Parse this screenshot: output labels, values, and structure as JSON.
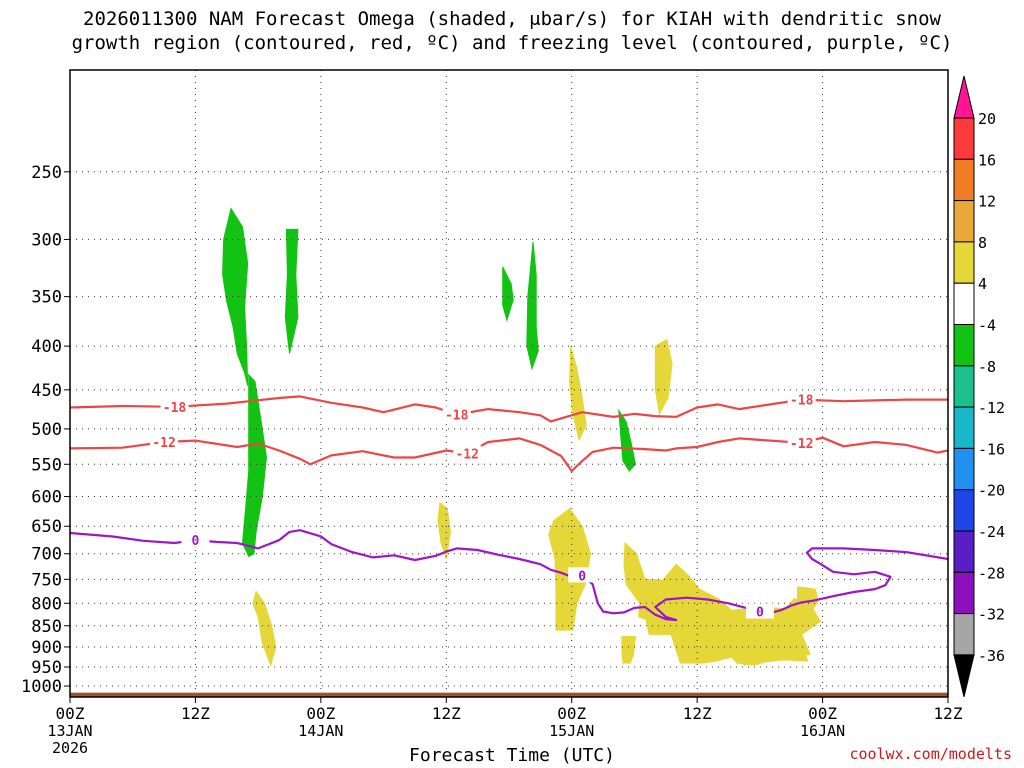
{
  "chart_data": {
    "type": "heatmap",
    "title_line1": "2026011300 NAM Forecast Omega (shaded, μbar/s) for KIAH with dendritic snow",
    "title_line2": "growth region (contoured, red, ºC) and freezing level (contoured, purple, ºC)",
    "xlabel": "Forecast Time (UTC)",
    "credit": "coolwx.com/modelts",
    "x_ticks": [
      {
        "hour": 0,
        "label": "00Z",
        "sub": "13JAN",
        "sub2": "2026"
      },
      {
        "hour": 12,
        "label": "12Z",
        "sub": "",
        "sub2": ""
      },
      {
        "hour": 24,
        "label": "00Z",
        "sub": "14JAN",
        "sub2": ""
      },
      {
        "hour": 36,
        "label": "12Z",
        "sub": "",
        "sub2": ""
      },
      {
        "hour": 48,
        "label": "00Z",
        "sub": "15JAN",
        "sub2": ""
      },
      {
        "hour": 60,
        "label": "12Z",
        "sub": "",
        "sub2": ""
      },
      {
        "hour": 72,
        "label": "00Z",
        "sub": "16JAN",
        "sub2": ""
      },
      {
        "hour": 84,
        "label": "12Z",
        "sub": "",
        "sub2": ""
      }
    ],
    "xlim": [
      0,
      84
    ],
    "y_ticks": [
      250,
      300,
      350,
      400,
      450,
      500,
      550,
      600,
      650,
      700,
      750,
      800,
      850,
      900,
      950,
      1000
    ],
    "ylim_hpa": [
      1030,
      190
    ],
    "colorbar": {
      "labels": [
        "20",
        "16",
        "12",
        "8",
        "4",
        "-4",
        "-8",
        "-12",
        "-16",
        "-20",
        "-24",
        "-28",
        "-32",
        "-36"
      ],
      "colors": [
        "#ff1493",
        "#ff3a3a",
        "#f07c24",
        "#e9a93a",
        "#e6d738",
        "#ffffff",
        "#13c313",
        "#1cc08c",
        "#18b7c9",
        "#2191f1",
        "#1f45e8",
        "#5a1ec6",
        "#8c10bd",
        "#a6a6a6",
        "#000000"
      ]
    },
    "contours": [
      {
        "label": "-18",
        "color": "#ee4646",
        "points": [
          [
            0,
            472
          ],
          [
            5,
            470
          ],
          [
            10,
            471
          ],
          [
            15,
            467
          ],
          [
            20,
            460
          ],
          [
            22,
            458
          ],
          [
            25,
            466
          ],
          [
            28,
            472
          ],
          [
            30,
            478
          ],
          [
            33,
            468
          ],
          [
            35,
            472
          ],
          [
            37,
            481
          ],
          [
            40,
            474
          ],
          [
            43,
            478
          ],
          [
            45,
            482
          ],
          [
            46,
            490
          ],
          [
            49,
            478
          ],
          [
            52,
            484
          ],
          [
            54,
            480
          ],
          [
            56,
            483
          ],
          [
            58,
            484
          ],
          [
            60,
            472
          ],
          [
            62,
            468
          ],
          [
            64,
            474
          ],
          [
            67,
            468
          ],
          [
            70,
            462
          ],
          [
            74,
            464
          ],
          [
            77,
            463
          ],
          [
            80,
            462
          ],
          [
            84,
            462
          ]
        ]
      },
      {
        "label": "-12",
        "color": "#ee4646",
        "points": [
          [
            0,
            527
          ],
          [
            5,
            526
          ],
          [
            9,
            518
          ],
          [
            12,
            516
          ],
          [
            16,
            525
          ],
          [
            18,
            520
          ],
          [
            20,
            530
          ],
          [
            22,
            542
          ],
          [
            23,
            550
          ],
          [
            25,
            537
          ],
          [
            28,
            531
          ],
          [
            31,
            540
          ],
          [
            33,
            540
          ],
          [
            36,
            530
          ],
          [
            38,
            534
          ],
          [
            40,
            518
          ],
          [
            43,
            513
          ],
          [
            45,
            522
          ],
          [
            47,
            538
          ],
          [
            48,
            560
          ],
          [
            49,
            545
          ],
          [
            50,
            532
          ],
          [
            52,
            526
          ],
          [
            55,
            528
          ],
          [
            57,
            530
          ],
          [
            58,
            527
          ],
          [
            60,
            525
          ],
          [
            62,
            518
          ],
          [
            64,
            513
          ],
          [
            67,
            516
          ],
          [
            70,
            519
          ],
          [
            72,
            512
          ],
          [
            74,
            524
          ],
          [
            77,
            518
          ],
          [
            80,
            522
          ],
          [
            83,
            533
          ],
          [
            84,
            530
          ]
        ]
      },
      {
        "label": "0",
        "color": "#9b17c9",
        "points": [
          [
            0,
            662
          ],
          [
            4,
            668
          ],
          [
            7,
            676
          ],
          [
            10,
            680
          ],
          [
            12,
            675
          ],
          [
            14,
            678
          ],
          [
            16,
            680
          ],
          [
            18,
            690
          ],
          [
            20,
            675
          ],
          [
            21,
            660
          ],
          [
            22,
            657
          ],
          [
            24,
            668
          ],
          [
            25,
            682
          ],
          [
            27,
            697
          ],
          [
            29,
            707
          ],
          [
            31,
            703
          ],
          [
            33,
            712
          ],
          [
            35,
            704
          ],
          [
            36,
            696
          ],
          [
            37,
            690
          ],
          [
            39,
            693
          ],
          [
            41,
            702
          ],
          [
            43,
            710
          ],
          [
            45,
            720
          ],
          [
            46,
            731
          ],
          [
            47,
            737
          ],
          [
            48,
            745
          ],
          [
            49,
            742
          ],
          [
            50,
            760
          ],
          [
            50.5,
            800
          ],
          [
            51,
            818
          ],
          [
            52,
            822
          ],
          [
            53,
            820
          ],
          [
            54,
            810
          ],
          [
            55,
            808
          ],
          [
            56,
            825
          ],
          [
            57,
            835
          ],
          [
            58,
            837
          ],
          [
            57,
            830
          ],
          [
            56,
            808
          ],
          [
            57,
            792
          ],
          [
            59,
            788
          ],
          [
            61,
            792
          ],
          [
            63,
            800
          ],
          [
            65,
            812
          ],
          [
            66,
            818
          ],
          [
            67,
            821
          ],
          [
            68,
            815
          ],
          [
            69,
            805
          ],
          [
            70,
            798
          ],
          [
            71,
            795
          ],
          [
            73,
            785
          ],
          [
            75,
            776
          ],
          [
            77,
            770
          ],
          [
            78,
            762
          ],
          [
            78.5,
            745
          ],
          [
            77,
            735
          ],
          [
            75,
            740
          ],
          [
            73,
            735
          ],
          [
            72,
            722
          ],
          [
            71,
            710
          ],
          [
            70.5,
            698
          ],
          [
            71,
            690
          ],
          [
            74,
            690
          ],
          [
            77,
            693
          ],
          [
            80,
            697
          ],
          [
            84,
            710
          ]
        ]
      }
    ],
    "omega_regions": [
      {
        "value_range": "-4 to -8",
        "color": "#13c313",
        "points": [
          [
            14.7,
            300
          ],
          [
            15.4,
            276
          ],
          [
            16.5,
            290
          ],
          [
            17,
            320
          ],
          [
            16.7,
            360
          ],
          [
            16.9,
            400
          ],
          [
            17,
            445
          ],
          [
            16.7,
            430
          ],
          [
            16,
            408
          ],
          [
            15.6,
            380
          ],
          [
            15,
            355
          ],
          [
            14.6,
            330
          ]
        ]
      },
      {
        "value_range": "-4 to -8",
        "color": "#13c313",
        "points": [
          [
            20.7,
            292
          ],
          [
            21.8,
            292
          ],
          [
            21.6,
            330
          ],
          [
            21.8,
            370
          ],
          [
            21,
            408
          ],
          [
            20.6,
            370
          ],
          [
            20.8,
            330
          ]
        ]
      },
      {
        "value_range": "-4 to -8",
        "color": "#13c313",
        "points": [
          [
            17.1,
            432
          ],
          [
            17.7,
            440
          ],
          [
            18.4,
            500
          ],
          [
            18.8,
            540
          ],
          [
            18.4,
            600
          ],
          [
            17.8,
            660
          ],
          [
            17.6,
            700
          ],
          [
            17.1,
            705
          ],
          [
            16.5,
            680
          ],
          [
            16.8,
            620
          ],
          [
            17.1,
            560
          ],
          [
            17.1,
            500
          ]
        ]
      },
      {
        "value_range": "-4 to -8",
        "color": "#13c313",
        "points": [
          [
            41.4,
            323
          ],
          [
            42.2,
            338
          ],
          [
            42.4,
            353
          ],
          [
            41.8,
            373
          ],
          [
            41.4,
            358
          ]
        ]
      },
      {
        "value_range": "-4 to -8",
        "color": "#13c313",
        "points": [
          [
            44.3,
            302
          ],
          [
            44.6,
            330
          ],
          [
            44.6,
            380
          ],
          [
            44.8,
            405
          ],
          [
            44.2,
            425
          ],
          [
            43.7,
            400
          ],
          [
            43.8,
            350
          ]
        ]
      },
      {
        "value_range": "-4 to -8",
        "color": "#13c313",
        "points": [
          [
            52.5,
            476
          ],
          [
            53.2,
            490
          ],
          [
            53.7,
            520
          ],
          [
            54.1,
            550
          ],
          [
            53.5,
            560
          ],
          [
            52.9,
            545
          ],
          [
            52.7,
            510
          ]
        ]
      },
      {
        "value_range": "4 to 8",
        "color": "#e6d738",
        "points": [
          [
            47.9,
            400
          ],
          [
            48.5,
            425
          ],
          [
            49,
            460
          ],
          [
            49.4,
            495
          ],
          [
            48.7,
            515
          ],
          [
            48.1,
            480
          ],
          [
            47.8,
            440
          ]
        ]
      },
      {
        "value_range": "4 to 8",
        "color": "#e6d738",
        "points": [
          [
            56,
            400
          ],
          [
            57.1,
            393
          ],
          [
            57.6,
            420
          ],
          [
            57.2,
            460
          ],
          [
            56.4,
            480
          ],
          [
            56,
            450
          ]
        ]
      },
      {
        "value_range": "4 to 8",
        "color": "#e6d738",
        "points": [
          [
            35.4,
            610
          ],
          [
            36.1,
            620
          ],
          [
            36.4,
            660
          ],
          [
            36,
            710
          ],
          [
            35.5,
            680
          ],
          [
            35.2,
            640
          ]
        ]
      },
      {
        "value_range": "4 to 8",
        "color": "#e6d738",
        "points": [
          [
            46.3,
            640
          ],
          [
            47.8,
            620
          ],
          [
            49,
            650
          ],
          [
            49.8,
            700
          ],
          [
            49.3,
            760
          ],
          [
            48.5,
            800
          ],
          [
            48.1,
            860
          ],
          [
            46.5,
            860
          ],
          [
            46.5,
            780
          ],
          [
            46.4,
            710
          ],
          [
            45.8,
            665
          ]
        ]
      },
      {
        "value_range": "4 to 8",
        "color": "#e6d738",
        "points": [
          [
            17.8,
            775
          ],
          [
            18.6,
            800
          ],
          [
            19.3,
            850
          ],
          [
            19.7,
            900
          ],
          [
            19.2,
            945
          ],
          [
            18.4,
            890
          ],
          [
            18,
            830
          ],
          [
            17.5,
            800
          ]
        ]
      },
      {
        "value_range": "4 to 8",
        "color": "#e6d738",
        "points": [
          [
            53.1,
            680
          ],
          [
            54.2,
            700
          ],
          [
            55,
            750
          ],
          [
            56.7,
            752
          ],
          [
            58,
            720
          ],
          [
            59.3,
            745
          ],
          [
            60.2,
            770
          ],
          [
            62,
            790
          ],
          [
            63.3,
            815
          ],
          [
            66.3,
            808
          ],
          [
            68.4,
            812
          ],
          [
            69.3,
            790
          ],
          [
            71,
            810
          ],
          [
            71.8,
            840
          ],
          [
            70,
            870
          ],
          [
            70.8,
            918
          ],
          [
            68.8,
            928
          ],
          [
            66.8,
            935
          ],
          [
            65.5,
            945
          ],
          [
            63.8,
            940
          ],
          [
            63.3,
            925
          ],
          [
            61.8,
            935
          ],
          [
            60.5,
            940
          ],
          [
            58.4,
            940
          ],
          [
            57.9,
            900
          ],
          [
            57.5,
            870
          ],
          [
            55.4,
            870
          ],
          [
            55.1,
            835
          ],
          [
            54.4,
            830
          ],
          [
            54.5,
            800
          ],
          [
            53.2,
            760
          ],
          [
            53,
            720
          ]
        ]
      },
      {
        "value_range": "4 to 8",
        "color": "#e6d738",
        "points": [
          [
            52.8,
            875
          ],
          [
            54.1,
            875
          ],
          [
            53.9,
            920
          ],
          [
            53.6,
            940
          ],
          [
            52.9,
            940
          ],
          [
            52.8,
            910
          ]
        ]
      },
      {
        "value_range": "4 to 8",
        "color": "#e6d738",
        "points": [
          [
            69.6,
            765
          ],
          [
            71.3,
            770
          ],
          [
            71.6,
            795
          ],
          [
            71,
            815
          ],
          [
            70,
            820
          ],
          [
            69.6,
            795
          ]
        ]
      },
      {
        "value_range": "4 to 8",
        "color": "#e6d738",
        "points": [
          [
            66,
            900
          ],
          [
            68.5,
            905
          ],
          [
            70.3,
            915
          ],
          [
            70.6,
            935
          ],
          [
            68.2,
            932
          ],
          [
            65.5,
            940
          ],
          [
            64.5,
            945
          ],
          [
            64.4,
            925
          ]
        ]
      }
    ]
  }
}
